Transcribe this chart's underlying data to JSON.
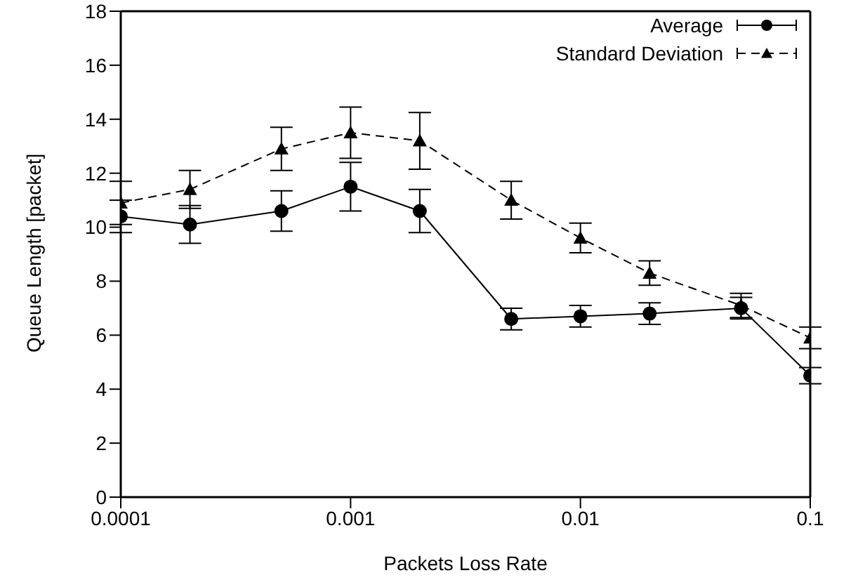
{
  "chart_data": {
    "type": "line",
    "xlabel": "Packets Loss Rate",
    "ylabel": "Queue Length [packet]",
    "log": "x",
    "x": [
      0.0001,
      0.0002,
      0.0005,
      0.001,
      0.002,
      0.005,
      0.01,
      0.02,
      0.05,
      0.1
    ],
    "xlim": [
      0.0001,
      0.1
    ],
    "xticks": [
      0.0001,
      0.001,
      0.01,
      0.1
    ],
    "ylim": [
      0,
      18
    ],
    "yticks": [
      0,
      2,
      4,
      6,
      8,
      10,
      12,
      14,
      16,
      18
    ],
    "legend": "top right",
    "series": [
      {
        "name": "Average",
        "color": "#000000",
        "marker": "circle",
        "line_style": "solid",
        "values": [
          10.4,
          10.1,
          10.6,
          11.5,
          10.6,
          6.6,
          6.7,
          6.8,
          7.0,
          4.5
        ],
        "errors": [
          0.6,
          0.7,
          0.75,
          0.9,
          0.8,
          0.4,
          0.4,
          0.4,
          0.4,
          0.3
        ]
      },
      {
        "name": "Standard Deviation",
        "color": "#000000",
        "marker": "triangle",
        "line_style": "dashed",
        "values": [
          10.9,
          11.4,
          12.9,
          13.5,
          13.2,
          11.0,
          9.6,
          8.3,
          7.1,
          5.9
        ],
        "errors": [
          0.8,
          0.7,
          0.8,
          0.95,
          1.05,
          0.7,
          0.55,
          0.45,
          0.45,
          0.4
        ]
      }
    ]
  }
}
